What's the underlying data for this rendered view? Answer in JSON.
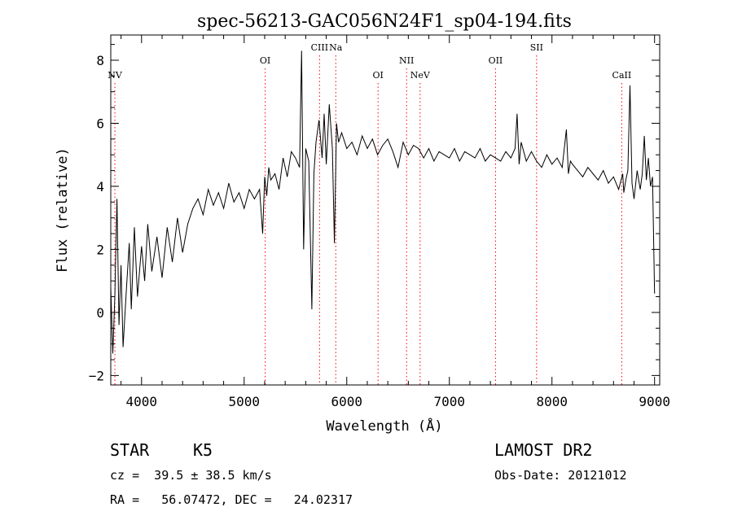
{
  "chart_data": {
    "type": "line",
    "title": "spec-56213-GAC056N24F1_sp04-194.fits",
    "xlabel": "Wavelength (Å)",
    "ylabel": "Flux (relative)",
    "xlim": [
      3700,
      9050
    ],
    "ylim": [
      -2.3,
      8.8
    ],
    "xticks": [
      4000,
      5000,
      6000,
      7000,
      8000,
      9000
    ],
    "yticks": [
      -2,
      0,
      2,
      4,
      6,
      8
    ],
    "grid": false,
    "line_color": "#000000",
    "marker_color": "#ff0000",
    "series": [
      {
        "x": [
          3700,
          3720,
          3740,
          3760,
          3780,
          3800,
          3820,
          3850,
          3880,
          3900,
          3930,
          3960,
          4000,
          4030,
          4060,
          4100,
          4150,
          4200,
          4250,
          4300,
          4350,
          4400,
          4450,
          4500,
          4550,
          4600,
          4650,
          4700,
          4750,
          4800,
          4850,
          4900,
          4950,
          5000,
          5050,
          5100,
          5150,
          5180,
          5200,
          5220,
          5240,
          5260,
          5300,
          5340,
          5380,
          5420,
          5460,
          5500,
          5540,
          5560,
          5580,
          5600,
          5630,
          5660,
          5680,
          5700,
          5730,
          5760,
          5780,
          5800,
          5830,
          5860,
          5880,
          5900,
          5920,
          5950,
          6000,
          6050,
          6100,
          6150,
          6200,
          6250,
          6300,
          6350,
          6400,
          6450,
          6500,
          6550,
          6600,
          6650,
          6700,
          6750,
          6800,
          6850,
          6900,
          6950,
          7000,
          7050,
          7100,
          7150,
          7200,
          7250,
          7300,
          7350,
          7400,
          7450,
          7500,
          7550,
          7600,
          7640,
          7660,
          7680,
          7700,
          7750,
          7800,
          7850,
          7900,
          7950,
          8000,
          8050,
          8100,
          8140,
          8160,
          8180,
          8200,
          8250,
          8300,
          8350,
          8400,
          8450,
          8500,
          8550,
          8600,
          8650,
          8690,
          8700,
          8720,
          8740,
          8760,
          8780,
          8800,
          8830,
          8860,
          8880,
          8900,
          8920,
          8940,
          8960,
          8980,
          9000
        ],
        "values": [
          0.8,
          -1.3,
          0.5,
          3.6,
          -0.4,
          1.5,
          -1.1,
          0.6,
          2.2,
          0.1,
          2.7,
          0.5,
          2.1,
          1.0,
          2.8,
          1.3,
          2.4,
          1.1,
          2.7,
          1.6,
          3.0,
          1.9,
          2.8,
          3.3,
          3.6,
          3.1,
          3.9,
          3.4,
          3.8,
          3.3,
          4.1,
          3.5,
          3.8,
          3.3,
          3.9,
          3.6,
          3.9,
          2.5,
          4.3,
          3.7,
          4.6,
          4.2,
          4.4,
          3.9,
          4.9,
          4.3,
          5.1,
          4.9,
          4.6,
          8.3,
          2.0,
          5.2,
          4.8,
          0.1,
          4.4,
          5.4,
          6.1,
          4.9,
          6.3,
          4.7,
          6.6,
          5.2,
          2.2,
          6.0,
          5.4,
          5.7,
          5.2,
          5.4,
          5.0,
          5.6,
          5.2,
          5.5,
          5.0,
          5.3,
          5.5,
          5.1,
          4.6,
          5.4,
          5.0,
          5.3,
          5.2,
          4.9,
          5.2,
          4.8,
          5.1,
          5.0,
          4.9,
          5.2,
          4.8,
          5.1,
          5.0,
          4.9,
          5.2,
          4.8,
          5.0,
          4.9,
          4.8,
          5.1,
          4.9,
          5.2,
          6.3,
          4.7,
          5.4,
          4.8,
          5.1,
          4.8,
          4.6,
          5.0,
          4.7,
          4.9,
          4.6,
          5.8,
          4.4,
          4.8,
          4.7,
          4.5,
          4.3,
          4.6,
          4.4,
          4.2,
          4.5,
          4.1,
          4.3,
          3.9,
          4.4,
          3.8,
          4.2,
          4.5,
          7.2,
          4.1,
          3.6,
          4.5,
          3.9,
          4.4,
          5.6,
          4.2,
          4.9,
          4.0,
          4.3,
          0.6
        ]
      }
    ],
    "markers": [
      {
        "label": "NV",
        "x": 3740,
        "level": "low"
      },
      {
        "label": "OI",
        "x": 5205,
        "level": "high"
      },
      {
        "label": "CIII",
        "x": 5735,
        "level": "top"
      },
      {
        "label": "Na",
        "x": 5893,
        "level": "top"
      },
      {
        "label": "OI",
        "x": 6305,
        "level": "low"
      },
      {
        "label": "NII",
        "x": 6583,
        "level": "high"
      },
      {
        "label": "NeV",
        "x": 6715,
        "level": "low"
      },
      {
        "label": "OII",
        "x": 7450,
        "level": "high"
      },
      {
        "label": "SII",
        "x": 7850,
        "level": "top"
      },
      {
        "label": "CaII",
        "x": 8680,
        "level": "low"
      }
    ]
  },
  "info": {
    "class_label": "STAR",
    "subclass": "K5",
    "redshift": "cz =  39.5 ± 38.5 km/s",
    "coords": "RA =   56.07472, DEC =   24.02317",
    "survey": "LAMOST DR2",
    "obs_date": "Obs-Date: 20121012"
  }
}
